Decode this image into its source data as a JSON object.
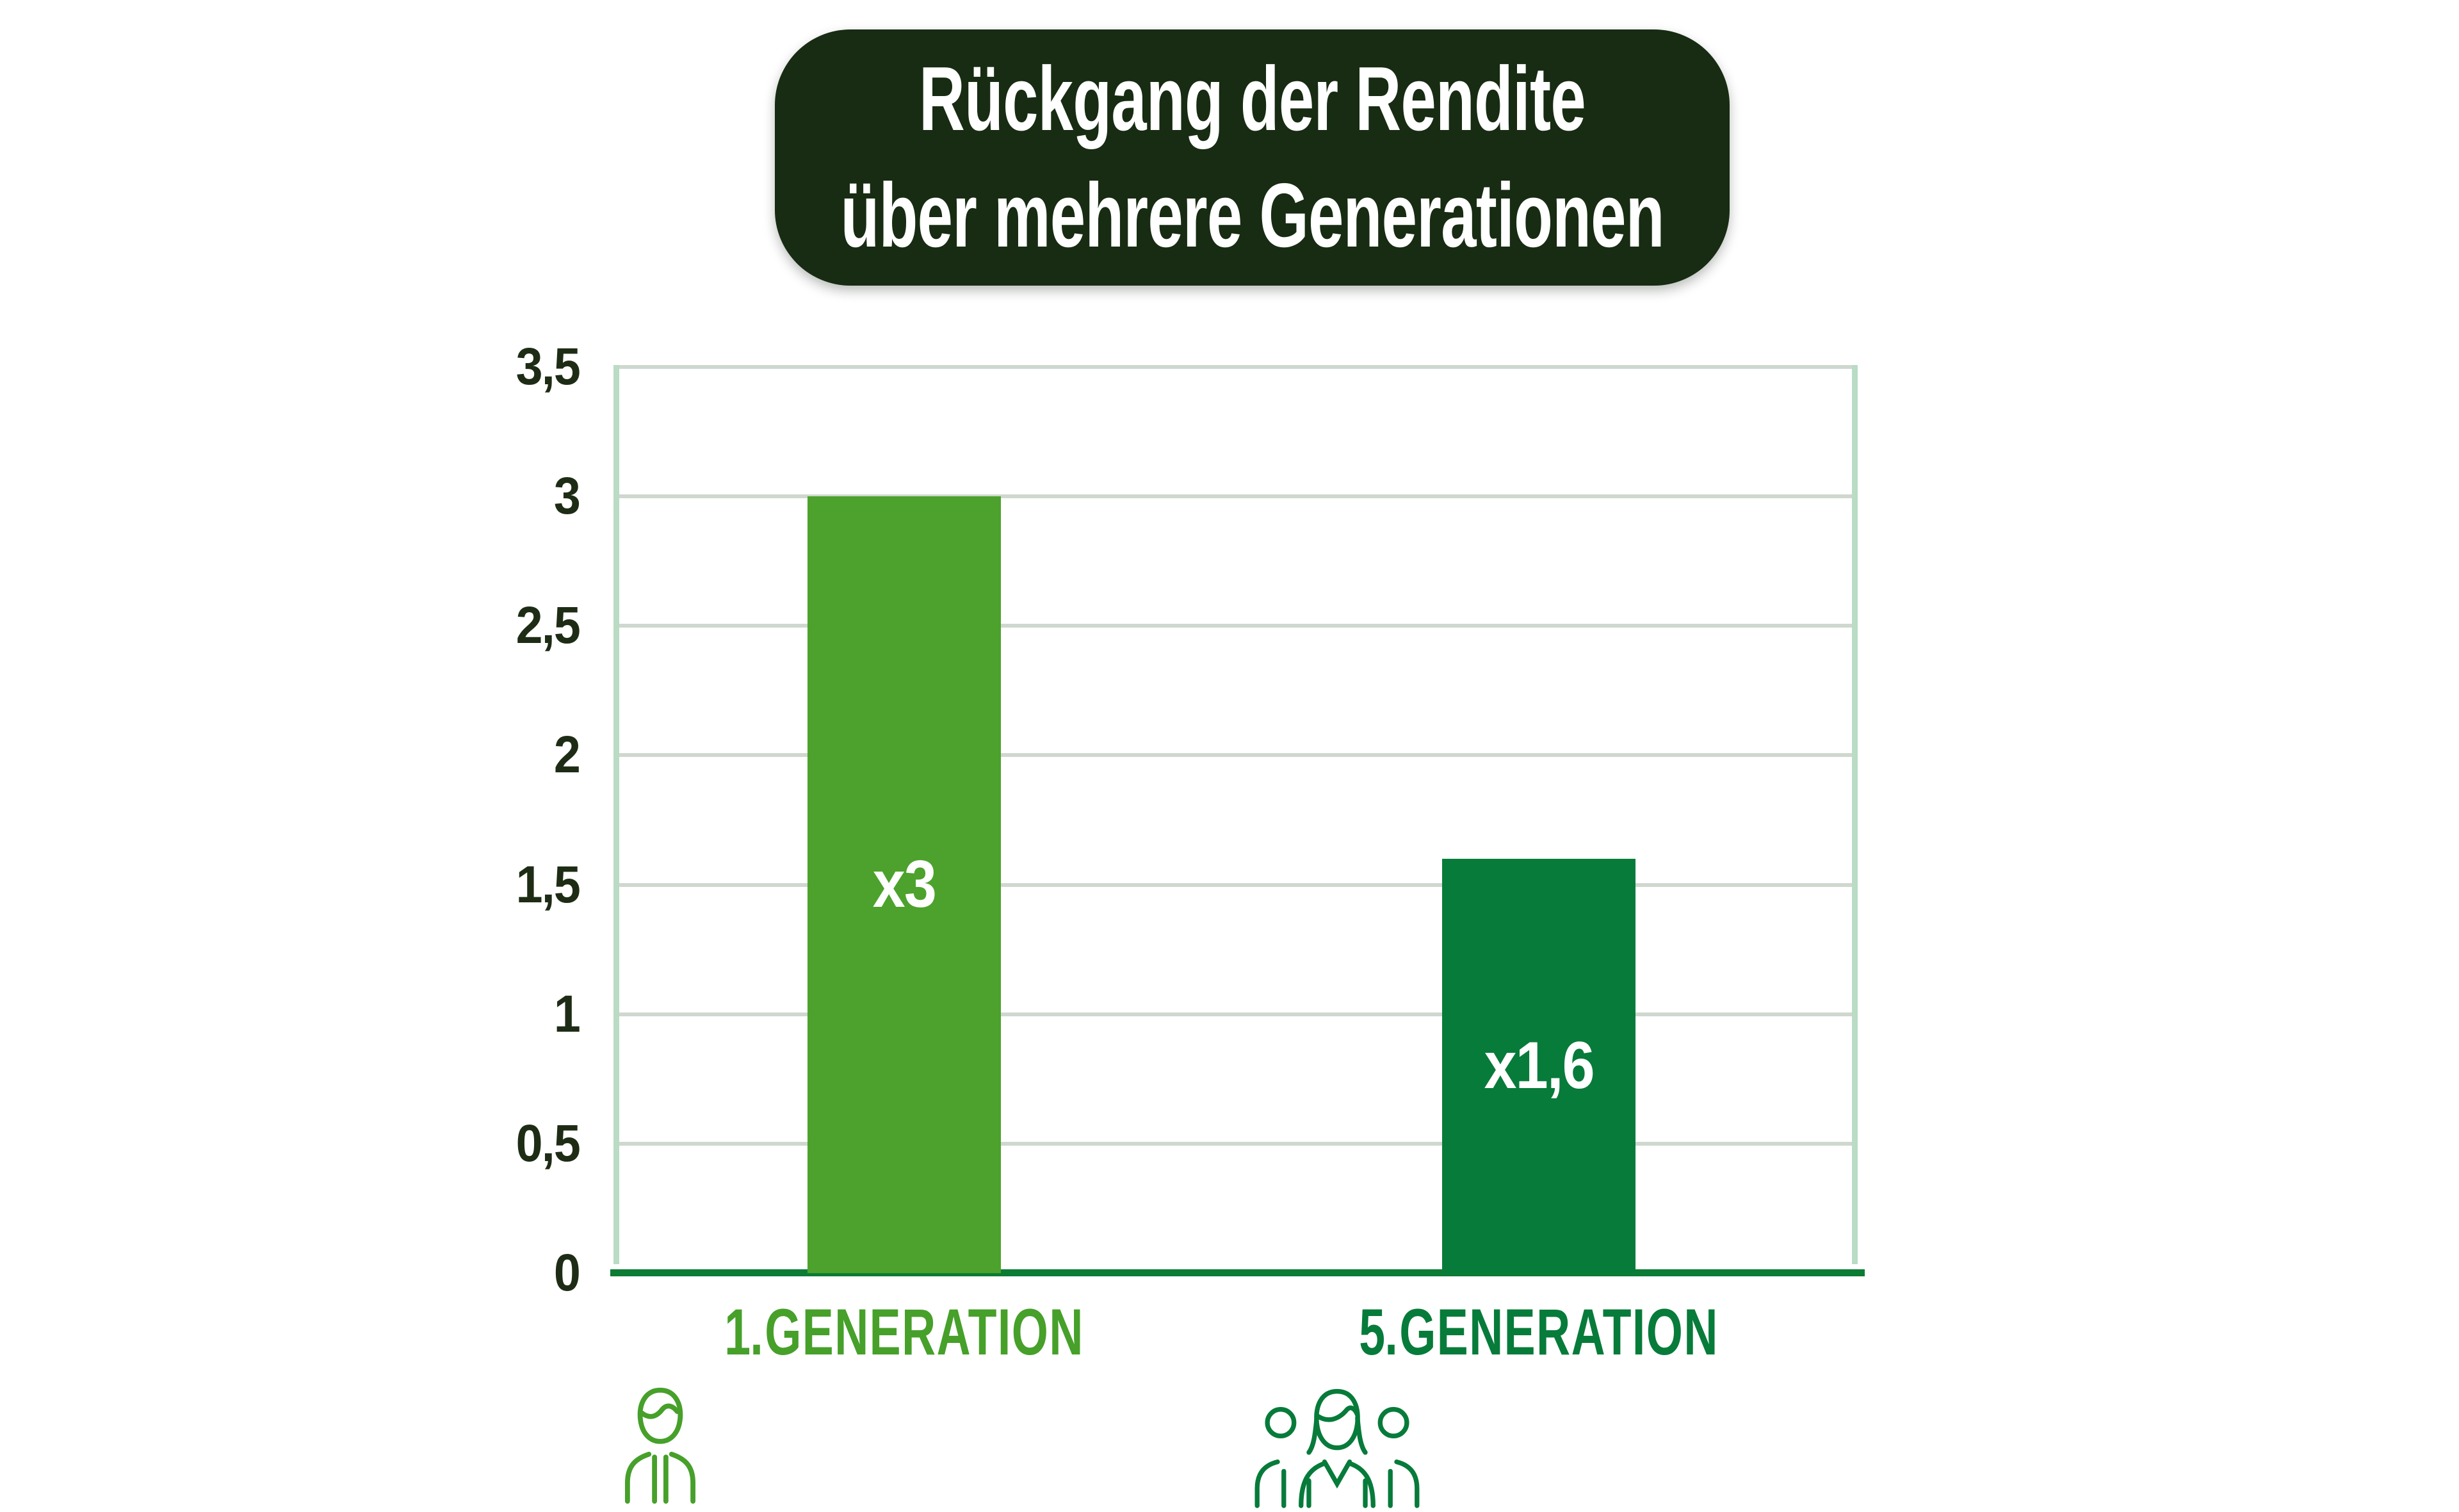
{
  "title": {
    "line1": "Rückgang der Rendite",
    "line2": "über mehrere Generationen"
  },
  "chart_data": {
    "type": "bar",
    "title": "Rückgang der Rendite über mehrere Generationen",
    "categories": [
      "1. GENERATION",
      "5. GENERATION"
    ],
    "categories_split": [
      {
        "prefix": "1.",
        "word": "GENERATION"
      },
      {
        "prefix": "5.",
        "word": "GENERATION"
      }
    ],
    "values": [
      3,
      1.6
    ],
    "bar_labels": [
      "x3",
      "x1,6"
    ],
    "bar_colors": [
      "#4ca22c",
      "#077b3a"
    ],
    "category_colors": [
      "#46a02a",
      "#077b3a"
    ],
    "category_icons": [
      "single-person-icon",
      "three-people-icon"
    ],
    "y_ticks": [
      {
        "value": 0,
        "label": "0"
      },
      {
        "value": 0.5,
        "label": "0,5"
      },
      {
        "value": 1,
        "label": "1"
      },
      {
        "value": 1.5,
        "label": "1,5"
      },
      {
        "value": 2,
        "label": "2"
      },
      {
        "value": 2.5,
        "label": "2,5"
      },
      {
        "value": 3,
        "label": "3"
      },
      {
        "value": 3.5,
        "label": "3,5"
      }
    ],
    "ylim": [
      0,
      3.5
    ],
    "xlabel": "",
    "ylabel": "",
    "grid": "horizontal",
    "legend": "none",
    "bar_center_fractions": [
      0.231,
      0.746
    ]
  },
  "colors": {
    "background": "#ffffff",
    "title_bg": "#172c12",
    "title_text": "#ffffff",
    "gridline": "#cfd8cf",
    "plot_side_border": "#badbc4",
    "baseline": "#0c7c34",
    "tick_text": "#1e2c15"
  }
}
